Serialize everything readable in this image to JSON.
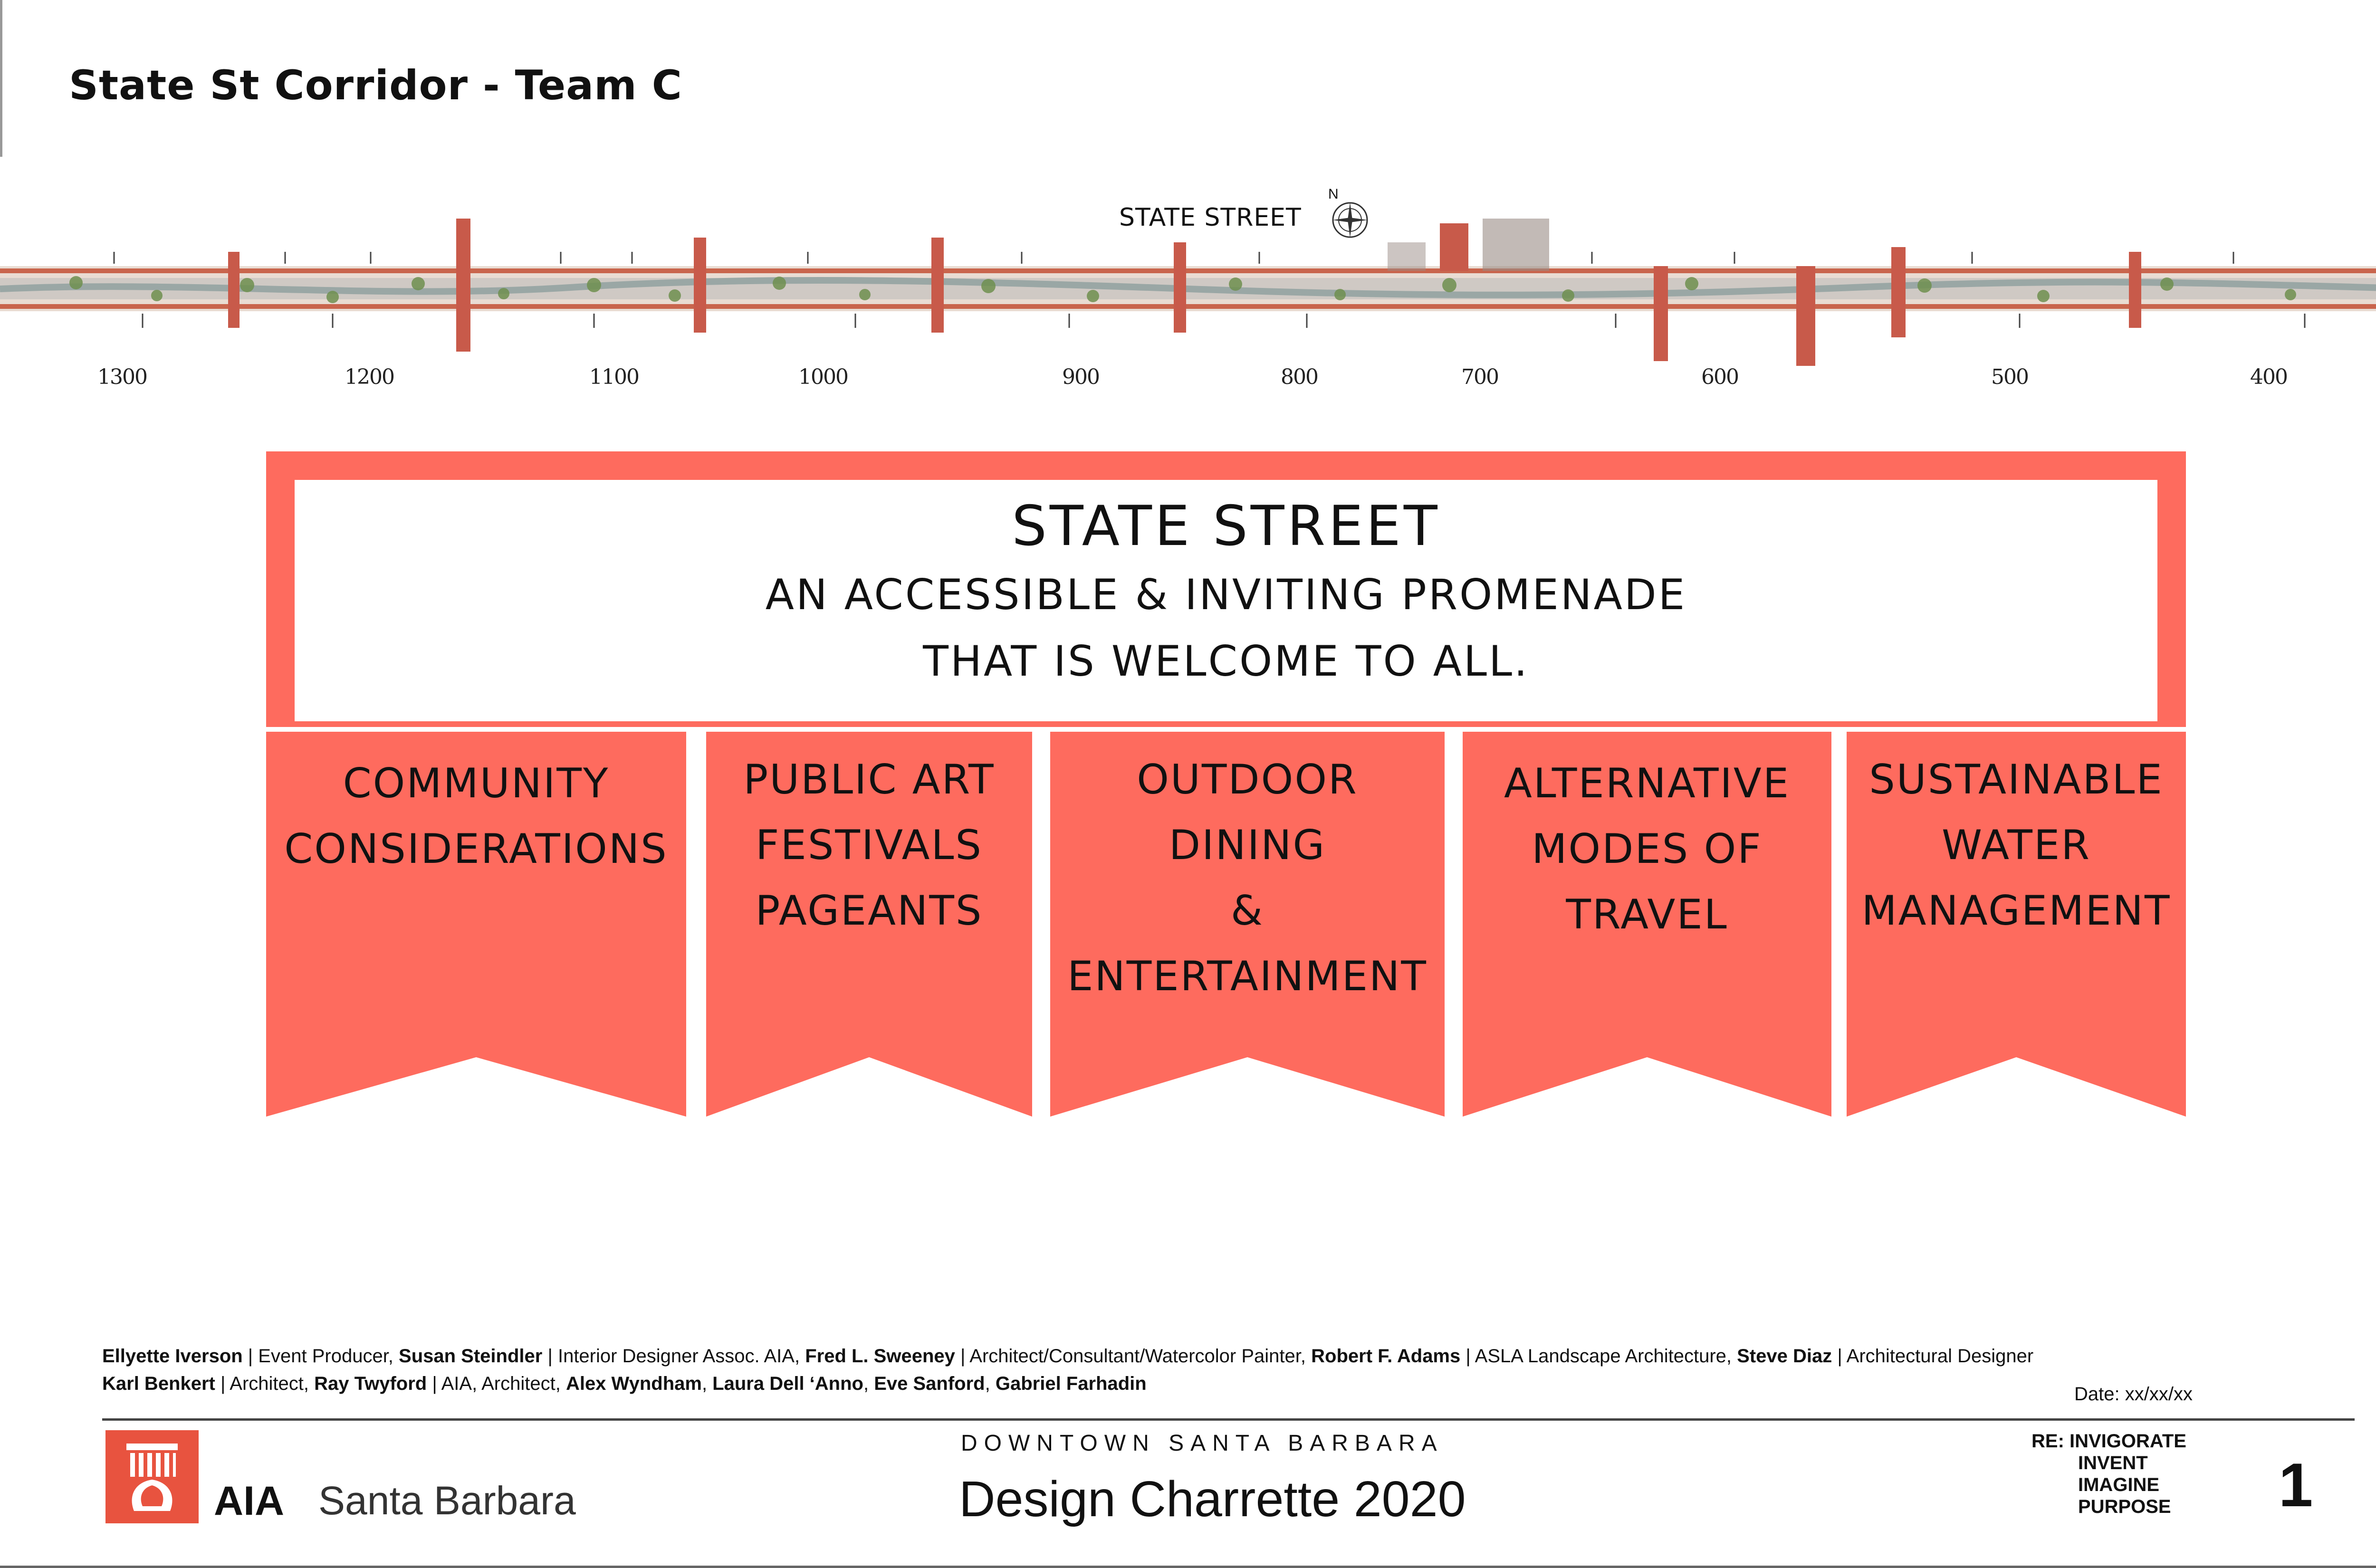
{
  "page_title": "State St Corridor - Team C",
  "street_map": {
    "label": "STATE STREET",
    "north": "N",
    "block_numbers": [
      "1300",
      "1200",
      "1100",
      "1000",
      "900",
      "800",
      "700",
      "600",
      "500",
      "400"
    ]
  },
  "vision": {
    "title": "STATE STREET",
    "line1": "AN ACCESSIBLE & INVITING PROMENADE",
    "line2": "THAT IS WELCOME TO ALL."
  },
  "pennants": [
    {
      "lines": [
        "COMMUNITY",
        "CONSIDERATIONS"
      ]
    },
    {
      "lines": [
        "PUBLIC ART",
        "FESTIVALS",
        "PAGEANTS"
      ]
    },
    {
      "lines": [
        "OUTDOOR",
        "DINING",
        "&",
        "ENTERTAINMENT"
      ]
    },
    {
      "lines": [
        "ALTERNATIVE",
        "MODES OF",
        "TRAVEL"
      ]
    },
    {
      "lines": [
        "SUSTAINABLE",
        "WATER",
        "MANAGEMENT"
      ]
    }
  ],
  "credits": {
    "line1": [
      {
        "name": "Ellyette Iverson",
        "role": " | Event Producer, "
      },
      {
        "name": "Susan Steindler",
        "role": " | Interior Designer Assoc. AIA, "
      },
      {
        "name": "Fred L. Sweeney",
        "role": " | Architect/Consultant/Watercolor Painter, "
      },
      {
        "name": "Robert F. Adams",
        "role": " | ASLA Landscape Architecture, "
      },
      {
        "name": "Steve Diaz",
        "role": " | Architectural Designer"
      }
    ],
    "line2": [
      {
        "name": "Karl Benkert",
        "role": " | Architect, "
      },
      {
        "name": "Ray Twyford",
        "role": " | AIA, Architect, "
      },
      {
        "name": "Alex Wyndham",
        "role": ", "
      },
      {
        "name": "Laura Dell ‘Anno",
        "role": ", "
      },
      {
        "name": "Eve Sanford",
        "role": ", "
      },
      {
        "name": "Gabriel Farhadin",
        "role": ""
      }
    ]
  },
  "date": "Date: xx/xx/xx",
  "footer": {
    "org_bold": "AIA",
    "org_city": "Santa Barbara",
    "subtitle": "DOWNTOWN SANTA BARBARA",
    "title": "Design Charrette 2020",
    "re_lines": [
      "RE: INVIGORATE",
      "INVENT",
      "IMAGINE",
      "PURPOSE"
    ],
    "page_number": "1"
  },
  "colors": {
    "accent": "#fe6b5e",
    "logo_red": "#e8533f",
    "text": "#111111"
  }
}
